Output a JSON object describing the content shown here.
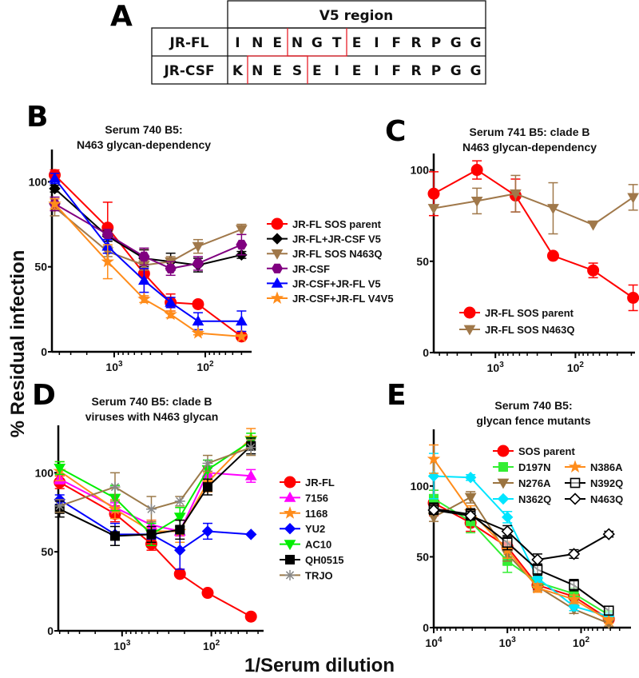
{
  "figure": {
    "ylabel": "% Residual infection",
    "xlabel": "1/Serum dilution"
  },
  "panel_a": {
    "letter": "A",
    "header": "V5 region",
    "rows": [
      {
        "name": "JR-FL",
        "seq": [
          "I",
          "N",
          "E",
          "N",
          "G",
          "T",
          "E",
          "I",
          "F",
          "R",
          "P",
          "G",
          "G"
        ]
      },
      {
        "name": "JR-CSF",
        "seq": [
          "K",
          "N",
          "E",
          "S",
          "E",
          "I",
          "E",
          "I",
          "F",
          "R",
          "P",
          "G",
          "G"
        ]
      }
    ],
    "highlight_color": "#e8202a"
  },
  "chart_data": [
    {
      "panel": "B",
      "type": "line",
      "title": [
        "Serum 740 B5:",
        "N463 glycan-dependency"
      ],
      "x_scale": "log-reversed",
      "xlim": [
        4830,
        31
      ],
      "ylim": [
        0,
        119
      ],
      "yticks": [
        {
          "value": 0,
          "label": "0"
        },
        {
          "value": 50,
          "label": "50"
        },
        {
          "value": 100,
          "label": "100"
        }
      ],
      "xticks": [
        {
          "value": 1000,
          "base": "10",
          "exp": "3"
        },
        {
          "value": 100,
          "base": "10",
          "exp": "2"
        }
      ],
      "x": [
        4500,
        1180,
        470,
        240,
        120,
        40
      ],
      "series": [
        {
          "name": "JR-FL SOS parent",
          "color": "#ff0000",
          "marker": "circle",
          "values": [
            104,
            73,
            46,
            29,
            28,
            9
          ],
          "err": [
            3,
            15,
            14,
            5,
            0,
            0
          ]
        },
        {
          "name": "JR-FL+JR-CSF V5",
          "color": "#000000",
          "marker": "diamond",
          "values": [
            96,
            68,
            55,
            53,
            51,
            57
          ],
          "err": [
            2,
            3,
            5,
            5,
            4,
            2
          ]
        },
        {
          "name": "JR-FL SOS N463Q",
          "color": "#a0784a",
          "marker": "tri-down",
          "values": [
            85,
            59,
            51,
            53,
            62,
            72
          ],
          "err": [
            5,
            3,
            3,
            3,
            4,
            3
          ]
        },
        {
          "name": "JR-CSF",
          "color": "#800080",
          "marker": "hexagon",
          "values": [
            87,
            69,
            56,
            49,
            52,
            63
          ],
          "err": [
            4,
            3,
            5,
            4,
            4,
            6
          ]
        },
        {
          "name": "JR-CSF+JR-FL V5",
          "color": "#0000ff",
          "marker": "tri-up",
          "values": [
            102,
            62,
            42,
            29,
            18,
            18
          ],
          "err": [
            3,
            4,
            7,
            3,
            5,
            6
          ]
        },
        {
          "name": "JR-CSF+JR-FL V4V5",
          "color": "#ff8c1a",
          "marker": "star",
          "values": [
            87,
            53,
            31,
            22,
            11,
            9
          ],
          "err": [
            3,
            10,
            2,
            2,
            1,
            0
          ]
        }
      ]
    },
    {
      "panel": "C",
      "type": "line",
      "title": [
        "Serum 741 B5: clade B",
        "N463 glycan-dependency"
      ],
      "x_scale": "log-reversed",
      "xlim": [
        5900,
        18
      ],
      "ylim": [
        0,
        109
      ],
      "yticks": [
        {
          "value": 0,
          "label": "0"
        },
        {
          "value": 50,
          "label": "50"
        },
        {
          "value": 100,
          "label": "100"
        }
      ],
      "xticks": [
        {
          "value": 1000,
          "base": "10",
          "exp": "3"
        },
        {
          "value": 100,
          "base": "10",
          "exp": "2"
        }
      ],
      "x": [
        5900,
        1700,
        560,
        190,
        60,
        19
      ],
      "series": [
        {
          "name": "JR-FL SOS parent",
          "color": "#ff0000",
          "marker": "circle",
          "values": [
            87,
            100,
            86,
            53,
            45,
            30
          ],
          "err": [
            12,
            5,
            9,
            0,
            4,
            7
          ]
        },
        {
          "name": "JR-FL SOS N463Q",
          "color": "#a0784a",
          "marker": "tri-down",
          "values": [
            79,
            83,
            87,
            79,
            70,
            85
          ],
          "err": [
            0,
            7,
            10,
            14,
            0,
            7
          ]
        }
      ]
    },
    {
      "panel": "D",
      "type": "line",
      "title": [
        "Serum 740 B5: clade B",
        "viruses with N463 glycan"
      ],
      "x_scale": "log-reversed",
      "xlim": [
        5180,
        26
      ],
      "ylim": [
        0,
        130
      ],
      "yticks": [
        {
          "value": 0,
          "label": "0"
        },
        {
          "value": 50,
          "label": "50"
        },
        {
          "value": 100,
          "label": "100"
        }
      ],
      "xticks": [
        {
          "value": 1000,
          "base": "10",
          "exp": "3"
        },
        {
          "value": 100,
          "base": "10",
          "exp": "2"
        }
      ],
      "x": [
        5000,
        1200,
        470,
        225,
        110,
        36
      ],
      "series": [
        {
          "name": "JR-FL",
          "color": "#ff0000",
          "marker": "circle",
          "values": [
            94,
            74,
            55,
            36,
            24,
            9
          ],
          "err": [
            4,
            5,
            4,
            0,
            0,
            0
          ]
        },
        {
          "name": "7156",
          "color": "#ff00ff",
          "marker": "tri-up",
          "values": [
            96,
            78,
            67,
            63,
            100,
            98
          ],
          "err": [
            3,
            3,
            3,
            3,
            3,
            4
          ]
        },
        {
          "name": "1168",
          "color": "#ff8c1a",
          "marker": "star",
          "values": [
            101,
            77,
            63,
            63,
            94,
            122
          ],
          "err": [
            6,
            6,
            7,
            7,
            6,
            6
          ]
        },
        {
          "name": "YU2",
          "color": "#0000ff",
          "marker": "diamond",
          "values": [
            83,
            61,
            61,
            51,
            63,
            61
          ],
          "err": [
            3,
            7,
            3,
            12,
            5,
            0
          ]
        },
        {
          "name": "AC10",
          "color": "#00ee00",
          "marker": "tri-down",
          "values": [
            103,
            84,
            61,
            72,
            102,
            120
          ],
          "err": [
            4,
            8,
            7,
            6,
            6,
            5
          ]
        },
        {
          "name": "QH0515",
          "color": "#000000",
          "marker": "square",
          "values": [
            77,
            60,
            61,
            64,
            91,
            117
          ],
          "err": [
            5,
            6,
            5,
            6,
            5,
            5
          ]
        },
        {
          "name": "TRJO",
          "color": "#9b7a4a",
          "marker": "asterisk",
          "values": [
            79,
            91,
            77,
            82,
            106,
            116
          ],
          "err": [
            4,
            9,
            8,
            3,
            5,
            5
          ]
        }
      ]
    },
    {
      "panel": "E",
      "type": "line",
      "title": [
        "Serum 740 B5:",
        "glycan fence mutants"
      ],
      "x_scale": "log-reversed",
      "xlim": [
        10000,
        21
      ],
      "ylim": [
        0,
        140
      ],
      "yticks": [
        {
          "value": 0,
          "label": "0"
        },
        {
          "value": 50,
          "label": "50"
        },
        {
          "value": 100,
          "label": "100"
        }
      ],
      "xticks": [
        {
          "value": 10000,
          "base": "10",
          "exp": "4"
        },
        {
          "value": 1000,
          "base": "10",
          "exp": "3"
        },
        {
          "value": 100,
          "base": "10",
          "exp": "2"
        }
      ],
      "x": [
        10000,
        3160,
        1000,
        390,
        125,
        42
      ],
      "series": [
        {
          "name": "SOS parent",
          "color": "#ff0000",
          "marker": "circle",
          "values": [
            88,
            74,
            57,
            30,
            22,
            6
          ],
          "err": [
            9,
            6,
            12,
            3,
            4,
            2
          ]
        },
        {
          "name": "D197N",
          "color": "#33ee33",
          "marker": "square",
          "values": [
            91,
            75,
            47,
            32,
            24,
            9
          ],
          "err": [
            6,
            8,
            8,
            4,
            4,
            2
          ]
        },
        {
          "name": "N276A",
          "color": "#9b7440",
          "marker": "tri-down",
          "values": [
            78,
            92,
            52,
            29,
            13,
            3
          ],
          "err": [
            3,
            4,
            5,
            3,
            3,
            2
          ]
        },
        {
          "name": "N362Q",
          "color": "#00e5ff",
          "marker": "diamond",
          "values": [
            107,
            106,
            78,
            35,
            15,
            8
          ],
          "err": [
            16,
            2,
            4,
            3,
            3,
            2
          ]
        },
        {
          "name": "N386A",
          "color": "#ff8c1a",
          "marker": "star",
          "values": [
            119,
            82,
            55,
            28,
            20,
            5
          ],
          "err": [
            10,
            4,
            6,
            3,
            3,
            2
          ]
        },
        {
          "name": "N392Q",
          "color": "#000000",
          "marker": "open-square",
          "values": [
            84,
            80,
            60,
            41,
            30,
            12
          ],
          "err": [
            4,
            4,
            5,
            4,
            4,
            3
          ]
        },
        {
          "name": "N463Q",
          "color": "#000000",
          "marker": "open-diamond",
          "values": [
            83,
            79,
            68,
            48,
            52,
            66
          ],
          "err": [
            3,
            3,
            4,
            4,
            3,
            2
          ]
        }
      ]
    }
  ]
}
